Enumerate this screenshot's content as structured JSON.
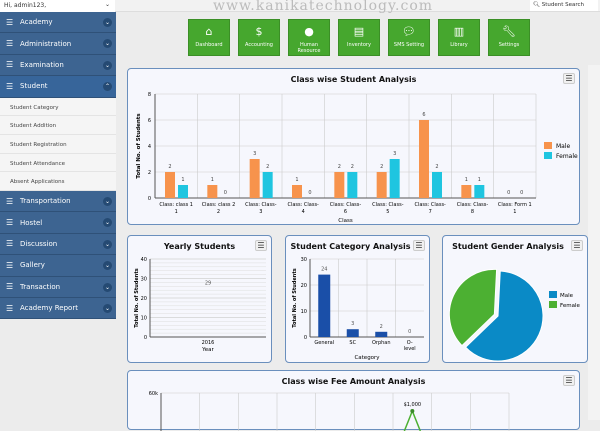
{
  "header": {
    "user": "Hi, admin123,",
    "watermark": "www.kanikatechnology.com",
    "search": "Student Search"
  },
  "sidebar": {
    "items": [
      {
        "label": "Academy"
      },
      {
        "label": "Administration"
      },
      {
        "label": "Examination"
      },
      {
        "label": "Student",
        "expanded": true,
        "sub": [
          "Student Category",
          "Student Addition",
          "Student Registration",
          "Student Attendance",
          "Absent Applications"
        ]
      },
      {
        "label": "Transportation"
      },
      {
        "label": "Hostel"
      },
      {
        "label": "Discussion"
      },
      {
        "label": "Gallery"
      },
      {
        "label": "Transaction"
      },
      {
        "label": "Academy Report"
      }
    ]
  },
  "nav": [
    {
      "label": "Dashboard",
      "icon": "home"
    },
    {
      "label": "Accounting",
      "icon": "dollar"
    },
    {
      "label": "Human Resource",
      "icon": "user"
    },
    {
      "label": "Inventory",
      "icon": "list"
    },
    {
      "label": "SMS Setting",
      "icon": "comment"
    },
    {
      "label": "Library",
      "icon": "book"
    },
    {
      "label": "Settings",
      "icon": "wrench"
    }
  ],
  "colors": {
    "sidebar": "#3d6491",
    "nav": "#46a72e",
    "male": "#f7934c",
    "female": "#1fc5e0",
    "pie_male": "#0a8ac6",
    "pie_female": "#4cb032"
  },
  "chart_data": [
    {
      "type": "bar",
      "title": "Class wise Student Analysis",
      "xlabel": "Class",
      "ylabel": "Total No. of Students",
      "ylim": [
        0,
        8
      ],
      "yticks": [
        0,
        2,
        4,
        6,
        8
      ],
      "grid": true,
      "legend": "right",
      "categories": [
        "Class: class 1",
        "Class: class 2",
        "Class: Class-3",
        "Class: Class-4",
        "Class: Class-6",
        "Class: Class-5",
        "Class: Class-7",
        "Class: Class-8",
        "Class: Form 1"
      ],
      "series": [
        {
          "name": "Male",
          "values": [
            2,
            1,
            3,
            1,
            2,
            2,
            6,
            1,
            0
          ]
        },
        {
          "name": "Female",
          "values": [
            1,
            0,
            2,
            0,
            2,
            3,
            2,
            1,
            0
          ]
        }
      ]
    },
    {
      "type": "bar",
      "title": "Yearly Students",
      "xlabel": "Year",
      "ylabel": "Total No. of Students",
      "ylim": [
        0,
        40
      ],
      "yticks": [
        0,
        10,
        20,
        30,
        40
      ],
      "categories": [
        "2016"
      ],
      "values": [
        29
      ]
    },
    {
      "type": "bar",
      "title": "Student Category Analysis",
      "xlabel": "Category",
      "ylabel": "Total No. of Students",
      "ylim": [
        0,
        30
      ],
      "yticks": [
        0,
        10,
        20,
        30
      ],
      "categories": [
        "General",
        "SC",
        "Orphan",
        "O-level"
      ],
      "values": [
        24,
        3,
        2,
        0
      ]
    },
    {
      "type": "pie",
      "title": "Student Gender Analysis",
      "legend": "right",
      "labels": [
        "Male",
        "Female"
      ],
      "values": [
        62,
        38
      ]
    },
    {
      "type": "line",
      "title": "Class wise Fee Amount Analysis",
      "yticks": [
        "60k"
      ],
      "point_label": "$1,000"
    }
  ]
}
